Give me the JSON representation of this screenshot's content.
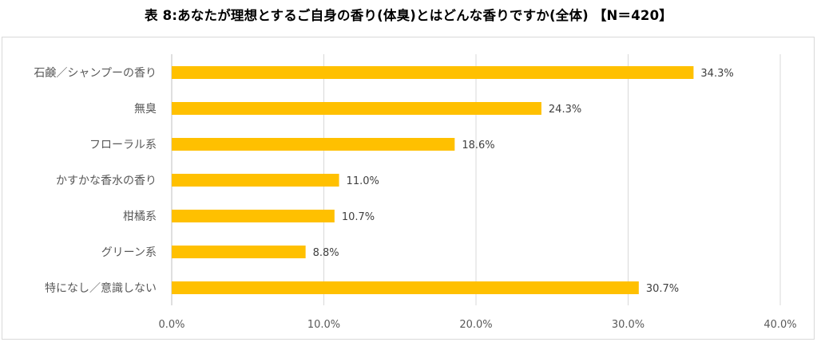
{
  "chart_data": {
    "type": "bar",
    "orientation": "horizontal",
    "title": "表 8:あなたが理想とするご自身の香り(体臭)とはどんな香りですか(全体) 【N＝420】",
    "categories": [
      "石鹸／シャンプーの香り",
      "無臭",
      "フローラル系",
      "かすかな香水の香り",
      "柑橘系",
      "グリーン系",
      "特になし／意識しない"
    ],
    "values": [
      34.3,
      24.3,
      18.6,
      11.0,
      10.7,
      8.8,
      30.7
    ],
    "data_labels": [
      "34.3%",
      "24.3%",
      "18.6%",
      "11.0%",
      "10.7%",
      "8.8%",
      "30.7%"
    ],
    "xlim": [
      0,
      40
    ],
    "x_ticks": [
      "0.0%",
      "10.0%",
      "20.0%",
      "30.0%",
      "40.0%"
    ],
    "xlabel": "",
    "ylabel": "",
    "grid": "vertical",
    "legend": "none",
    "bar_color": "#ffc000"
  }
}
